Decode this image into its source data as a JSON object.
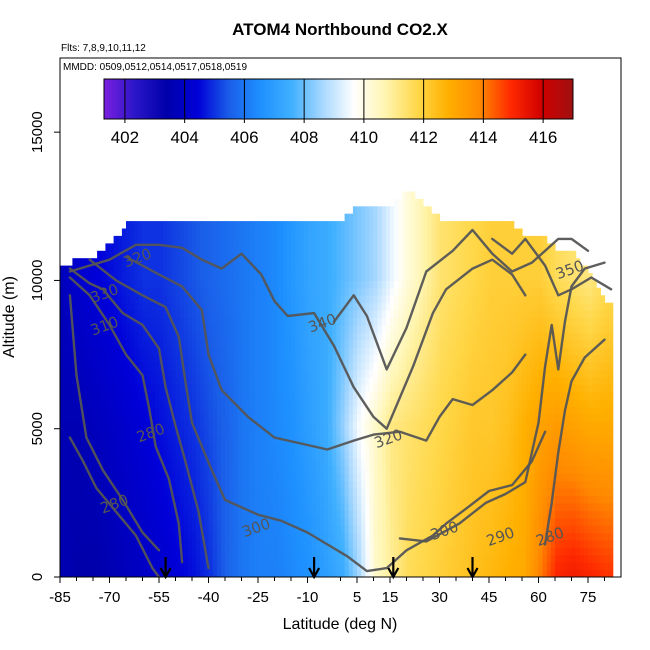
{
  "chart_data": {
    "type": "heatmap",
    "title": "ATOM4 Northbound CO2.X",
    "subtitle_lines": [
      "Flts: 7,8,9,10,11,12",
      "MMDD: 0509,0512,0514,0517,0518,0519"
    ],
    "xlabel": "Latitude (deg N)",
    "ylabel": "Altitude (m)",
    "xlim": [
      -85,
      85
    ],
    "ylim": [
      0,
      17500
    ],
    "x_ticks": [
      -85,
      -70,
      -55,
      -40,
      -25,
      -10,
      5,
      15,
      30,
      45,
      60,
      75
    ],
    "x_minor_ticks": [
      -80,
      -75,
      -65,
      -60,
      -50,
      -45,
      -35,
      -30,
      -20,
      -15,
      0,
      10,
      20,
      25,
      35,
      40,
      50,
      55,
      65,
      70,
      80
    ],
    "y_ticks": [
      0,
      5000,
      10000,
      15000
    ],
    "colorbar": {
      "min": 401.3,
      "max": 417,
      "ticks": [
        402,
        404,
        406,
        408,
        410,
        412,
        414,
        416
      ],
      "colors": [
        "#7b1fe0",
        "#2a16c8",
        "#0000aa",
        "#0000d8",
        "#1a5ee8",
        "#1e90ff",
        "#40b0ff",
        "#a9d8ff",
        "#ffffff",
        "#fff5b0",
        "#ffd84a",
        "#ffb000",
        "#ff8a00",
        "#ff2a00",
        "#d00000",
        "#a01010"
      ]
    },
    "grid": false,
    "sample_columns": [
      {
        "lat": -85,
        "top": 10300,
        "vals": [
          403.6,
          403.6,
          403.8
        ]
      },
      {
        "lat": -80,
        "top": 10600,
        "vals": [
          403.4,
          403.6,
          404.2
        ]
      },
      {
        "lat": -75,
        "top": 10700,
        "vals": [
          403.4,
          403.8,
          404.4
        ]
      },
      {
        "lat": -70,
        "top": 11200,
        "vals": [
          403.6,
          404.0,
          404.6
        ]
      },
      {
        "lat": -65,
        "top": 11800,
        "vals": [
          403.8,
          404.2,
          404.8
        ]
      },
      {
        "lat": -60,
        "top": 12000,
        "vals": [
          404.0,
          404.4,
          405.0
        ]
      },
      {
        "lat": -55,
        "top": 12000,
        "vals": [
          404.2,
          404.6,
          405.0
        ]
      },
      {
        "lat": -50,
        "top": 11900,
        "vals": [
          404.4,
          404.8,
          405.2
        ]
      },
      {
        "lat": -45,
        "top": 11900,
        "vals": [
          404.6,
          405.0,
          405.4
        ]
      },
      {
        "lat": -40,
        "top": 11900,
        "vals": [
          405.0,
          405.3,
          405.6
        ]
      },
      {
        "lat": -35,
        "top": 11900,
        "vals": [
          405.6,
          405.6,
          405.8
        ]
      },
      {
        "lat": -30,
        "top": 12000,
        "vals": [
          406.0,
          406.0,
          406.0
        ]
      },
      {
        "lat": -25,
        "top": 12000,
        "vals": [
          406.2,
          406.2,
          406.2
        ]
      },
      {
        "lat": -20,
        "top": 12000,
        "vals": [
          406.2,
          406.4,
          406.4
        ]
      },
      {
        "lat": -15,
        "top": 12000,
        "vals": [
          406.4,
          406.6,
          406.8
        ]
      },
      {
        "lat": -10,
        "top": 12000,
        "vals": [
          406.6,
          407.0,
          407.2
        ]
      },
      {
        "lat": -5,
        "top": 12000,
        "vals": [
          407.0,
          407.4,
          407.4
        ]
      },
      {
        "lat": 0,
        "top": 12000,
        "vals": [
          407.4,
          408.4,
          407.8
        ]
      },
      {
        "lat": 5,
        "top": 12500,
        "vals": [
          408.6,
          409.6,
          408.2
        ]
      },
      {
        "lat": 10,
        "top": 12500,
        "vals": [
          410.4,
          410.4,
          408.6
        ]
      },
      {
        "lat": 15,
        "top": 12500,
        "vals": [
          411.0,
          411.2,
          409.4
        ]
      },
      {
        "lat": 20,
        "top": 13000,
        "vals": [
          411.6,
          411.4,
          410.2
        ]
      },
      {
        "lat": 25,
        "top": 12500,
        "vals": [
          411.8,
          411.6,
          410.8
        ]
      },
      {
        "lat": 30,
        "top": 12000,
        "vals": [
          412.0,
          411.8,
          411.4
        ]
      },
      {
        "lat": 35,
        "top": 12000,
        "vals": [
          412.2,
          412.0,
          411.6
        ]
      },
      {
        "lat": 40,
        "top": 12000,
        "vals": [
          412.4,
          412.2,
          411.8
        ]
      },
      {
        "lat": 45,
        "top": 12000,
        "vals": [
          412.6,
          412.2,
          412.0
        ]
      },
      {
        "lat": 50,
        "top": 11900,
        "vals": [
          412.8,
          412.4,
          412.0
        ]
      },
      {
        "lat": 55,
        "top": 11500,
        "vals": [
          413.0,
          412.8,
          412.0
        ]
      },
      {
        "lat": 60,
        "top": 11500,
        "vals": [
          414.0,
          413.2,
          412.0
        ]
      },
      {
        "lat": 65,
        "top": 11000,
        "vals": [
          415.0,
          413.4,
          411.6
        ]
      },
      {
        "lat": 70,
        "top": 10800,
        "vals": [
          415.2,
          413.2,
          411.4
        ]
      },
      {
        "lat": 75,
        "top": 10200,
        "vals": [
          415.0,
          413.0,
          411.2
        ]
      },
      {
        "lat": 80,
        "top": 9200,
        "vals": [
          414.8,
          413.0,
          411.6
        ]
      }
    ],
    "sample_levels": [
      0,
      5000,
      10000
    ],
    "theta_contours": [
      {
        "label": "280",
        "points": [
          [
            -82,
            4700
          ],
          [
            -78,
            3900
          ],
          [
            -74,
            3000
          ],
          [
            -68,
            2200
          ],
          [
            -62,
            1400
          ],
          [
            -57,
            300
          ],
          [
            -55,
            0
          ]
        ]
      },
      {
        "label": "280",
        "points": [
          [
            -82,
            9500
          ],
          [
            -80,
            6800
          ],
          [
            -77,
            4700
          ],
          [
            -72,
            3600
          ],
          [
            -66,
            2600
          ],
          [
            -60,
            1500
          ],
          [
            -55,
            900
          ]
        ]
      },
      {
        "label": "290",
        "points": [
          [
            -82,
            10100
          ],
          [
            -76,
            9500
          ],
          [
            -70,
            8500
          ],
          [
            -65,
            7500
          ],
          [
            -60,
            6800
          ],
          [
            -58,
            5700
          ],
          [
            -56,
            4400
          ],
          [
            -52,
            3300
          ],
          [
            -49,
            1800
          ],
          [
            -48,
            500
          ]
        ]
      },
      {
        "label": "300",
        "points": [
          [
            -82,
            10400
          ],
          [
            -76,
            9900
          ],
          [
            -72,
            9700
          ],
          [
            -66,
            8900
          ],
          [
            -60,
            8500
          ],
          [
            -55,
            7700
          ],
          [
            -53,
            6400
          ],
          [
            -50,
            5100
          ],
          [
            -47,
            3900
          ],
          [
            -43,
            2200
          ],
          [
            -40,
            300
          ]
        ]
      },
      {
        "label": "310",
        "points": [
          [
            -76,
            10700
          ],
          [
            -68,
            10000
          ],
          [
            -60,
            9500
          ],
          [
            -53,
            9100
          ],
          [
            -49,
            8100
          ],
          [
            -47,
            6600
          ],
          [
            -45,
            5200
          ],
          [
            -39,
            3600
          ],
          [
            -35,
            2600
          ],
          [
            -25,
            2100
          ],
          [
            -18,
            1900
          ],
          [
            -10,
            1500
          ],
          [
            -4,
            1100
          ],
          [
            2,
            700
          ],
          [
            8,
            200
          ],
          [
            14,
            300
          ],
          [
            20,
            900
          ],
          [
            28,
            1400
          ],
          [
            32,
            1800
          ],
          [
            38,
            2300
          ],
          [
            45,
            2900
          ],
          [
            52,
            3100
          ],
          [
            58,
            3900
          ],
          [
            62,
            4900
          ]
        ]
      },
      {
        "label": "320",
        "points": [
          [
            -65,
            10800
          ],
          [
            -55,
            10200
          ],
          [
            -48,
            9800
          ],
          [
            -42,
            9000
          ],
          [
            -40,
            7500
          ],
          [
            -36,
            6300
          ],
          [
            -28,
            5400
          ],
          [
            -20,
            4700
          ],
          [
            -12,
            4500
          ],
          [
            -4,
            4300
          ],
          [
            4,
            4600
          ],
          [
            10,
            4800
          ],
          [
            18,
            4900
          ],
          [
            26,
            4600
          ],
          [
            30,
            5400
          ],
          [
            34,
            6000
          ],
          [
            40,
            5800
          ],
          [
            46,
            6300
          ],
          [
            52,
            6900
          ],
          [
            56,
            7500
          ]
        ]
      },
      {
        "label": "330",
        "points": [
          [
            -82,
            10300
          ],
          [
            -70,
            10700
          ],
          [
            -62,
            11200
          ],
          [
            -55,
            11200
          ],
          [
            -48,
            11100
          ],
          [
            -42,
            10700
          ],
          [
            -36,
            10400
          ],
          [
            -30,
            10900
          ],
          [
            -24,
            10200
          ],
          [
            -20,
            9300
          ],
          [
            -16,
            8800
          ],
          [
            -8,
            8900
          ],
          [
            -2,
            7800
          ],
          [
            4,
            6400
          ],
          [
            10,
            5400
          ],
          [
            14,
            5000
          ],
          [
            22,
            7100
          ],
          [
            28,
            8900
          ],
          [
            32,
            9700
          ],
          [
            40,
            10400
          ],
          [
            46,
            10700
          ],
          [
            52,
            10200
          ],
          [
            56,
            9500
          ]
        ]
      },
      {
        "label": "340",
        "points": [
          [
            -2,
            8600
          ],
          [
            4,
            9500
          ],
          [
            8,
            8800
          ],
          [
            14,
            7000
          ],
          [
            20,
            8400
          ],
          [
            26,
            10300
          ],
          [
            34,
            11000
          ],
          [
            40,
            11700
          ],
          [
            46,
            10900
          ],
          [
            52,
            10300
          ],
          [
            58,
            10600
          ],
          [
            62,
            11000
          ],
          [
            66,
            11400
          ],
          [
            70,
            11400
          ],
          [
            75,
            11000
          ]
        ]
      },
      {
        "label": "350",
        "points": [
          [
            46,
            11400
          ],
          [
            52,
            10900
          ],
          [
            56,
            11400
          ],
          [
            62,
            10500
          ],
          [
            66,
            9500
          ],
          [
            70,
            9700
          ],
          [
            76,
            10100
          ],
          [
            82,
            9700
          ]
        ]
      },
      {
        "label": "290",
        "points": [
          [
            18,
            1300
          ],
          [
            26,
            1200
          ],
          [
            36,
            1800
          ],
          [
            44,
            2500
          ],
          [
            50,
            2800
          ],
          [
            56,
            3200
          ],
          [
            58,
            4200
          ],
          [
            60,
            5200
          ],
          [
            62,
            7100
          ],
          [
            64,
            8500
          ],
          [
            66,
            7000
          ],
          [
            68,
            8600
          ],
          [
            70,
            9800
          ],
          [
            74,
            10400
          ],
          [
            80,
            10600
          ]
        ]
      },
      {
        "label": "280",
        "points": [
          [
            62,
            1100
          ],
          [
            64,
            2500
          ],
          [
            66,
            4200
          ],
          [
            68,
            5600
          ],
          [
            70,
            6600
          ],
          [
            74,
            7400
          ],
          [
            80,
            8000
          ]
        ]
      }
    ],
    "contour_labels": [
      {
        "text": "280",
        "lat": -68,
        "alt": 2300
      },
      {
        "text": "280",
        "lat": -57,
        "alt": 4700
      },
      {
        "text": "300",
        "lat": -25,
        "alt": 1500
      },
      {
        "text": "320",
        "lat": 15,
        "alt": 4500
      },
      {
        "text": "300",
        "lat": 32,
        "alt": 1400
      },
      {
        "text": "290",
        "lat": 49,
        "alt": 1200
      },
      {
        "text": "280",
        "lat": 64,
        "alt": 1200
      },
      {
        "text": "330",
        "lat": -71,
        "alt": 9400
      },
      {
        "text": "340",
        "lat": -5,
        "alt": 8400
      },
      {
        "text": "350",
        "lat": 70,
        "alt": 10200
      },
      {
        "text": "310",
        "lat": -71,
        "alt": 8300
      },
      {
        "text": "320",
        "lat": -61,
        "alt": 10600
      }
    ],
    "arrows_at_lat": [
      -53,
      -8,
      16,
      40
    ]
  }
}
